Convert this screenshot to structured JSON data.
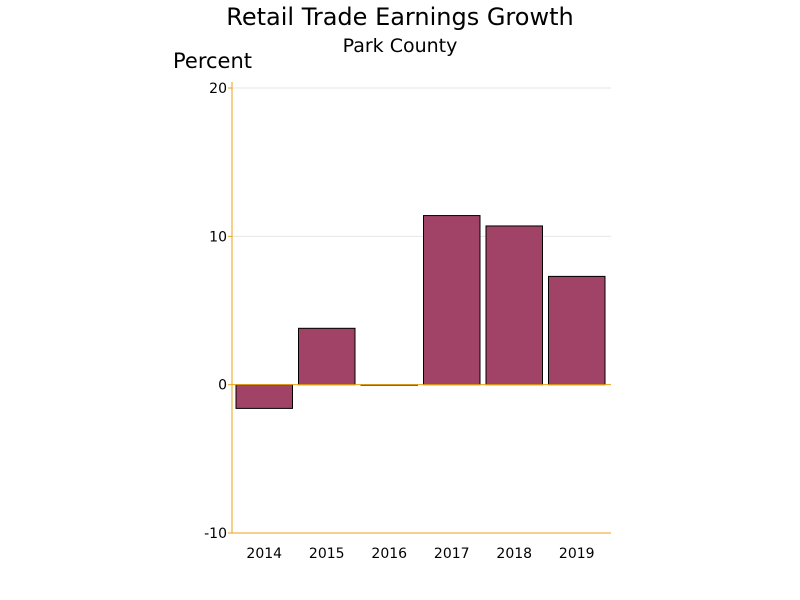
{
  "chart_data": {
    "type": "bar",
    "title": "Retail Trade Earnings Growth",
    "subtitle": "Park County",
    "ylabel": "Percent",
    "xlabel": "",
    "categories": [
      "2014",
      "2015",
      "2016",
      "2017",
      "2018",
      "2019"
    ],
    "values": [
      -1.6,
      3.8,
      0.0,
      11.4,
      10.7,
      7.3
    ],
    "ylim": [
      -10,
      20
    ],
    "yticks": [
      -10,
      0,
      10,
      20
    ],
    "grid": true,
    "legend": "none",
    "colors": {
      "bar_fill": "#A04366",
      "bar_stroke": "#000000",
      "axis": "#E8A317",
      "grid": "#E6E6E6"
    }
  }
}
